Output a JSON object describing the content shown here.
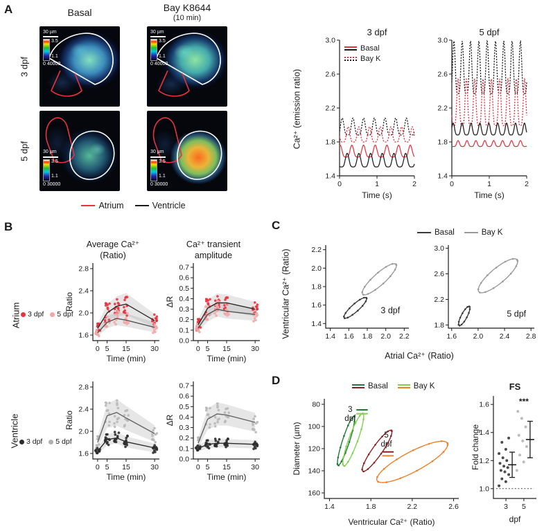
{
  "panelA": {
    "label": "A",
    "columns": {
      "basal": "Basal",
      "bayk": "Bay K8644",
      "bayk_sub": "(10 min)"
    },
    "rows": {
      "dpf3": "3 dpf",
      "dpf5": "5 dpf"
    },
    "images": [
      {
        "scale": "30 µm",
        "cmax": "3.5",
        "cmin": "1.1",
        "range": "0 40000"
      },
      {
        "scale": "30 µm",
        "cmax": "3.5",
        "cmin": "1.1",
        "range": "0 40000"
      },
      {
        "scale": "30 µm",
        "cmax": "3.5",
        "cmin": "1.1",
        "range": "0 30000"
      },
      {
        "scale": "30 µm",
        "cmax": "3.5",
        "cmin": "1.1",
        "range": "0 30000"
      }
    ],
    "legend": [
      {
        "label": "Atrium",
        "color": "#e8333f"
      },
      {
        "label": "Ventricle",
        "color": "#1a1a1a"
      }
    ],
    "trace_legend": [
      {
        "label": "Basal"
      },
      {
        "label": "Bay K"
      }
    ],
    "ylabel": "Ca²⁺ (emission ratio)"
  },
  "panelB": {
    "label": "B",
    "col1_title": "Average Ca²⁺",
    "col1_sub": "(Ratio)",
    "col2_title": "Ca²⁺ transient",
    "col2_sub": "amplitude",
    "atrium": {
      "row": "Atrium",
      "legend": [
        {
          "label": "3 dpf",
          "color": "#e8333f"
        },
        {
          "label": "5 dpf",
          "color": "#f4a6a6"
        }
      ]
    },
    "ventricle": {
      "row": "Ventricle",
      "legend": [
        {
          "label": "3 dpf",
          "color": "#2b2b2b"
        },
        {
          "label": "5 dpf",
          "color": "#b0b0b0"
        }
      ]
    }
  },
  "panelC": {
    "label": "C",
    "legend": [
      {
        "label": "Basal",
        "color": "#3a3a3a"
      },
      {
        "label": "Bay K",
        "color": "#9a9a9a"
      }
    ],
    "ylabel": "Ventricular Ca²⁺ (Ratio)",
    "xlabel": "Atrial Ca²⁺ (Ratio)"
  },
  "panelD": {
    "label": "D",
    "legend": [
      {
        "label": "Basal",
        "colors": [
          "#1e7a34",
          "#8f1f1f"
        ]
      },
      {
        "label": "Bay K",
        "colors": [
          "#7fd14b",
          "#f07f2a"
        ]
      }
    ]
  },
  "chart_data": [
    {
      "id": "traces-3dpf",
      "type": "line",
      "render": "waves",
      "title": "3 dpf",
      "xlabel": "Time (s)",
      "xlim": [
        0,
        2
      ],
      "xtv": [
        0,
        1,
        2
      ],
      "xtl": [
        "0",
        "1",
        "2"
      ],
      "ylim": [
        1.4,
        3.0
      ],
      "ytv": [
        1.4,
        1.8,
        2.2,
        2.6,
        3.0
      ],
      "ytl": [
        "1.4",
        "1.8",
        "2.2",
        "2.6",
        "3.0"
      ],
      "series": [
        {
          "name": "Bay K ventricle",
          "color": "#1a1a1a",
          "dash": true,
          "mean": 1.95,
          "amp": 0.2,
          "freq": 3.5,
          "phase": 0.0
        },
        {
          "name": "Bay K atrium",
          "color": "#e8333f",
          "dash": true,
          "mean": 1.86,
          "amp": 0.18,
          "freq": 3.5,
          "phase": 0.45
        },
        {
          "name": "Basal atrium",
          "color": "#e8333f",
          "dash": false,
          "mean": 1.67,
          "amp": 0.14,
          "freq": 3.2,
          "phase": 0.2
        },
        {
          "name": "Basal ventricle",
          "color": "#1a1a1a",
          "dash": false,
          "mean": 1.56,
          "amp": 0.16,
          "freq": 3.2,
          "phase": 0.6
        }
      ]
    },
    {
      "id": "traces-5dpf",
      "type": "line",
      "render": "waves",
      "title": "5 dpf",
      "xlabel": "Time (s)",
      "xlim": [
        0,
        2
      ],
      "xtv": [
        0,
        1,
        2
      ],
      "xtl": [
        "0",
        "1",
        "2"
      ],
      "ylim": [
        1.4,
        3.0
      ],
      "ytv": [
        1.4,
        1.8,
        2.2,
        2.6,
        3.0
      ],
      "ytl": [
        "1.4",
        "1.8",
        "2.2",
        "2.6",
        "3.0"
      ],
      "series": [
        {
          "name": "Bay K ventricle",
          "color": "#1a1a1a",
          "dash": true,
          "mean": 2.58,
          "amp": 0.62,
          "freq": 4.5,
          "phase": 0.0
        },
        {
          "name": "Bay K atrium",
          "color": "#e8333f",
          "dash": true,
          "mean": 2.18,
          "amp": 0.55,
          "freq": 4.5,
          "phase": 0.5
        },
        {
          "name": "Basal ventricle",
          "color": "#1a1a1a",
          "dash": false,
          "mean": 1.93,
          "amp": 0.14,
          "freq": 4.2,
          "phase": 0.1
        },
        {
          "name": "Basal atrium",
          "color": "#e8333f",
          "dash": false,
          "mean": 1.77,
          "amp": 0.07,
          "freq": 4.2,
          "phase": 0.55
        }
      ]
    },
    {
      "id": "atrium-ratio",
      "type": "scatter",
      "render": "meanscatter",
      "ylabel": "Ratio",
      "xlabel": "Time (min)",
      "xlim": [
        -2.5,
        32.5
      ],
      "xtv": [
        0,
        5,
        15,
        30
      ],
      "xtl": [
        "0",
        "5",
        "15",
        "30"
      ],
      "x": [
        0,
        5,
        10,
        15,
        30
      ],
      "ylim": [
        1.5,
        2.9
      ],
      "ytv": [
        1.6,
        2.0,
        2.4,
        2.8
      ],
      "ytl": [
        "1.6",
        "2.0",
        "2.4",
        "2.8"
      ],
      "series": [
        {
          "name": "3 dpf",
          "point_color": "#e8333f",
          "line_color": "#2b2b2b",
          "mean": [
            1.72,
            2.0,
            2.12,
            2.16,
            1.86
          ],
          "sd": [
            0.08,
            0.16,
            0.18,
            0.2,
            0.12
          ],
          "n": 12
        },
        {
          "name": "5 dpf",
          "point_color": "#f4a6a6",
          "line_color": "#555555",
          "mean": [
            1.64,
            1.83,
            1.9,
            1.87,
            1.74
          ],
          "sd": [
            0.06,
            0.11,
            0.12,
            0.12,
            0.09
          ],
          "n": 10
        }
      ]
    },
    {
      "id": "atrium-amplitude",
      "type": "scatter",
      "render": "meanscatter",
      "ylabel": "ΔR",
      "xlabel": "Time (min)",
      "xlim": [
        -2.5,
        32.5
      ],
      "xtv": [
        0,
        5,
        15,
        30
      ],
      "xtl": [
        "0",
        "5",
        "15",
        "30"
      ],
      "x": [
        0,
        5,
        10,
        15,
        30
      ],
      "ylim": [
        0,
        0.74
      ],
      "ytv": [
        0,
        0.1,
        0.2,
        0.3,
        0.4,
        0.5,
        0.6,
        0.7
      ],
      "ytl": [
        "0.0",
        "0.1",
        "0.2",
        "0.3",
        "0.4",
        "0.5",
        "0.6",
        "0.7"
      ],
      "series": [
        {
          "name": "3 dpf",
          "point_color": "#e8333f",
          "line_color": "#2b2b2b",
          "mean": [
            0.15,
            0.31,
            0.36,
            0.36,
            0.3
          ],
          "sd": [
            0.05,
            0.08,
            0.09,
            0.08,
            0.07
          ],
          "n": 12
        },
        {
          "name": "5 dpf",
          "point_color": "#f4a6a6",
          "line_color": "#555555",
          "mean": [
            0.12,
            0.25,
            0.3,
            0.28,
            0.25
          ],
          "sd": [
            0.04,
            0.07,
            0.07,
            0.07,
            0.06
          ],
          "n": 10
        }
      ]
    },
    {
      "id": "ventricle-ratio",
      "type": "scatter",
      "render": "meanscatter",
      "ylabel": "Ratio",
      "xlabel": "Time (min)",
      "xlim": [
        -2.5,
        32.5
      ],
      "xtv": [
        0,
        5,
        15,
        30
      ],
      "xtl": [
        "0",
        "5",
        "15",
        "30"
      ],
      "x": [
        0,
        5,
        10,
        15,
        30
      ],
      "ylim": [
        1.5,
        2.9
      ],
      "ytv": [
        1.6,
        2.0,
        2.4,
        2.8
      ],
      "ytl": [
        "1.6",
        "2.0",
        "2.4",
        "2.8"
      ],
      "series": [
        {
          "name": "5 dpf",
          "point_color": "#b8b8b8",
          "line_color": "#666666",
          "mean": [
            1.8,
            2.28,
            2.34,
            2.24,
            1.96
          ],
          "sd": [
            0.1,
            0.22,
            0.24,
            0.22,
            0.15
          ],
          "n": 10
        },
        {
          "name": "3 dpf",
          "point_color": "#2b2b2b",
          "line_color": "#2b2b2b",
          "mean": [
            1.64,
            1.85,
            1.88,
            1.81,
            1.7
          ],
          "sd": [
            0.06,
            0.1,
            0.1,
            0.1,
            0.08
          ],
          "n": 12
        }
      ]
    },
    {
      "id": "ventricle-amplitude",
      "type": "scatter",
      "render": "meanscatter",
      "ylabel": "ΔR",
      "xlabel": "Time (min)",
      "xlim": [
        -2.5,
        32.5
      ],
      "xtv": [
        0,
        5,
        15,
        30
      ],
      "xtl": [
        "0",
        "5",
        "15",
        "30"
      ],
      "x": [
        0,
        5,
        10,
        15,
        30
      ],
      "ylim": [
        0,
        0.74
      ],
      "ytv": [
        0,
        0.1,
        0.2,
        0.3,
        0.4,
        0.5,
        0.6,
        0.7
      ],
      "ytl": [
        "0.0",
        "0.1",
        "0.2",
        "0.3",
        "0.4",
        "0.5",
        "0.6",
        "0.7"
      ],
      "series": [
        {
          "name": "5 dpf",
          "point_color": "#b8b8b8",
          "line_color": "#666666",
          "mean": [
            0.15,
            0.38,
            0.43,
            0.42,
            0.35
          ],
          "sd": [
            0.05,
            0.1,
            0.11,
            0.1,
            0.09
          ],
          "n": 10
        },
        {
          "name": "3 dpf",
          "point_color": "#2b2b2b",
          "line_color": "#2b2b2b",
          "mean": [
            0.1,
            0.14,
            0.15,
            0.15,
            0.14
          ],
          "sd": [
            0.03,
            0.04,
            0.04,
            0.04,
            0.04
          ],
          "n": 12
        }
      ]
    },
    {
      "id": "phase-3dpf",
      "type": "line",
      "render": "loops",
      "xlim": [
        1.35,
        2.25
      ],
      "xtv": [
        1.4,
        1.6,
        1.8,
        2.0,
        2.2
      ],
      "xtl": [
        "1.4",
        "1.6",
        "1.8",
        "2.0",
        "2.2"
      ],
      "ylim": [
        1.35,
        2.25
      ],
      "ytv": [
        1.4,
        1.6,
        1.8,
        2.0,
        2.2
      ],
      "ytl": [
        "1.4",
        "1.6",
        "1.8",
        "2.0",
        "2.2"
      ],
      "loops": [
        {
          "name": "Basal",
          "color": "#3a3a3a",
          "cx": 1.67,
          "cy": 1.57,
          "A": 0.18,
          "B": 0.045,
          "theta": 42
        },
        {
          "name": "Bay K",
          "color": "#9a9a9a",
          "cx": 1.93,
          "cy": 1.88,
          "A": 0.27,
          "B": 0.07,
          "theta": 42
        }
      ],
      "ann": [
        {
          "t": "3 dpf",
          "x": 2.05,
          "y": 1.51,
          "size": 12.5
        }
      ]
    },
    {
      "id": "phase-5dpf",
      "type": "line",
      "render": "loops",
      "xlim": [
        1.55,
        2.85
      ],
      "xtv": [
        1.6,
        2.0,
        2.4,
        2.8
      ],
      "xtl": [
        "1.6",
        "2.0",
        "2.4",
        "2.8"
      ],
      "ylim": [
        1.75,
        3.05
      ],
      "ytv": [
        1.8,
        2.2,
        2.6,
        3.0
      ],
      "ytl": [
        "1.8",
        "2.2",
        "2.6",
        "3.0"
      ],
      "loops": [
        {
          "name": "Basal",
          "color": "#3a3a3a",
          "cx": 1.79,
          "cy": 1.94,
          "A": 0.13,
          "B": 0.035,
          "theta": 62
        },
        {
          "name": "Bay K",
          "color": "#9a9a9a",
          "cx": 2.3,
          "cy": 2.57,
          "A": 0.3,
          "B": 0.09,
          "theta": 40
        }
      ],
      "ann": [
        {
          "t": "5 dpf",
          "x": 2.58,
          "y": 1.93,
          "size": 12.5
        }
      ]
    },
    {
      "id": "diameter-loops",
      "type": "line",
      "render": "loops",
      "invertY": true,
      "ylabel": "Diameter (µm)",
      "xlabel": "Ventricular Ca²⁺ (Ratio)",
      "xlim": [
        1.35,
        2.65
      ],
      "xtv": [
        1.4,
        1.8,
        2.2,
        2.6
      ],
      "xtl": [
        "1.4",
        "1.8",
        "2.2",
        "2.6"
      ],
      "ylim": [
        75,
        165
      ],
      "ytv": [
        80,
        100,
        120,
        140,
        160
      ],
      "ytl": [
        "80",
        "100",
        "120",
        "140",
        "160"
      ],
      "loops": [
        {
          "name": "Basal 3 dpf",
          "color": "#1e7a34",
          "cx": 1.56,
          "cy": 113,
          "A": 0.26,
          "B": 0.035,
          "theta": 72
        },
        {
          "name": "Bay K 3 dpf",
          "color": "#7fd14b",
          "cx": 1.63,
          "cy": 112,
          "A": 0.28,
          "B": 0.045,
          "theta": 70
        },
        {
          "name": "Basal 5 dpf",
          "color": "#8f1f1f",
          "cx": 1.86,
          "cy": 122,
          "A": 0.25,
          "B": 0.05,
          "theta": 55
        },
        {
          "name": "Bay K 5 dpf",
          "color": "#f07f2a",
          "cx": 2.2,
          "cy": 132,
          "A": 0.4,
          "B": 0.1,
          "theta": 28
        }
      ],
      "ann": [
        {
          "t": "3",
          "x": 1.6,
          "y": 87,
          "size": 11.5
        },
        {
          "t": "dpf",
          "x": 1.6,
          "y": 95,
          "size": 11.5
        },
        {
          "t": "5",
          "x": 1.95,
          "y": 110,
          "size": 11.5
        },
        {
          "t": "dpf",
          "x": 1.95,
          "y": 118,
          "size": 11.5
        }
      ],
      "annlines": [
        {
          "x1": 1.66,
          "y1": 85,
          "x2": 1.77,
          "y2": 85,
          "color": "#1e7a34"
        },
        {
          "x1": 1.66,
          "y1": 88.5,
          "x2": 1.77,
          "y2": 88.5,
          "color": "#7fd14b"
        },
        {
          "x1": 1.91,
          "y1": 123,
          "x2": 2.02,
          "y2": 123,
          "color": "#8f1f1f"
        },
        {
          "x1": 1.91,
          "y1": 126.5,
          "x2": 2.02,
          "y2": 126.5,
          "color": "#f07f2a"
        }
      ]
    },
    {
      "id": "fs",
      "type": "scatter",
      "render": "dotgroups",
      "title": "FS",
      "title_bold": true,
      "xlabel": "dpf",
      "xlim": [
        -0.7,
        1.7
      ],
      "xtv": [
        0,
        1
      ],
      "xtl": [
        "3",
        "5"
      ],
      "ylim": [
        0.93,
        1.66
      ],
      "ytv": [
        1.0,
        1.2,
        1.4,
        1.6
      ],
      "ytl": [
        "1.0",
        "1.2",
        "1.4",
        "1.6"
      ],
      "ylabel": "Fold change",
      "hline": 1.0,
      "groups": [
        {
          "label": "3",
          "x": 0,
          "color": "#2b2b2b",
          "mean": 1.17,
          "err": 0.09,
          "points": [
            1.02,
            1.05,
            1.07,
            1.1,
            1.12,
            1.13,
            1.15,
            1.16,
            1.18,
            1.2,
            1.22,
            1.25,
            1.28,
            1.33,
            1.36
          ]
        },
        {
          "label": "5",
          "x": 1,
          "color": "#b0b0b0",
          "mean": 1.35,
          "err": 0.13,
          "points": [
            1.13,
            1.19,
            1.24,
            1.3,
            1.34,
            1.38,
            1.44,
            1.5,
            1.55
          ]
        }
      ],
      "sig": {
        "t": "***",
        "x": 1,
        "y": 1.6
      }
    }
  ]
}
